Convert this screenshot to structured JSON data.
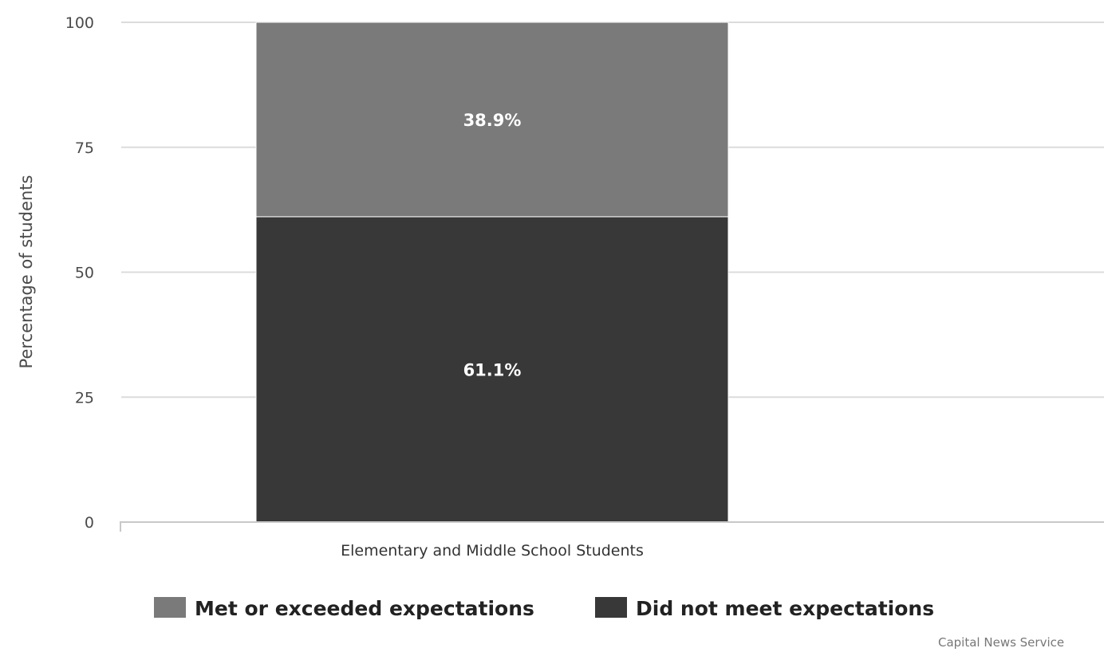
{
  "chart_data": {
    "type": "bar",
    "stacked": true,
    "categories": [
      "Elementary and Middle School Students"
    ],
    "series": [
      {
        "name": "Did not meet expectations",
        "values": [
          61.1
        ],
        "label": "61.1%",
        "color": "#383838"
      },
      {
        "name": "Met or exceeded expectations",
        "values": [
          38.9
        ],
        "label": "38.9%",
        "color": "#7a7a7a"
      }
    ],
    "ylabel": "Percentage of students",
    "xlabel": "",
    "ylim": [
      0,
      100
    ],
    "yticks": [
      "0",
      "25",
      "50",
      "75",
      "100"
    ],
    "grid": true,
    "legend": {
      "position": "bottom",
      "items": [
        {
          "name": "Met or exceeded expectations",
          "color": "#7a7a7a"
        },
        {
          "name": "Did not meet expectations",
          "color": "#383838"
        }
      ]
    },
    "credit": "Capital News Service"
  }
}
